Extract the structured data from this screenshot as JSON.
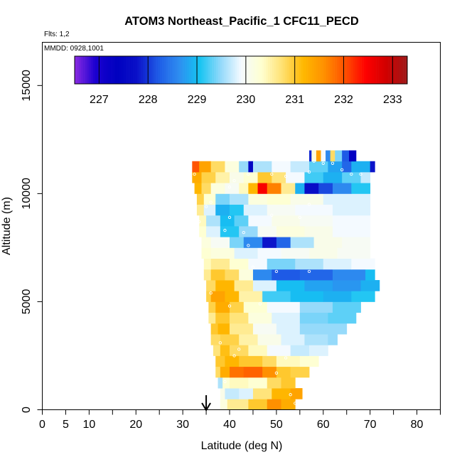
{
  "chart_data": {
    "type": "heatmap",
    "title": "ATOM3 Northeast_Pacific_1 CFC11_PECD",
    "subtitle_flights": "Flts: 1,2",
    "subtitle_dates": "MMDD: 0928,1001",
    "xlabel": "Latitude (deg N)",
    "ylabel": "Altitude (m)",
    "xlim": [
      0,
      85
    ],
    "ylim": [
      0,
      17000
    ],
    "x_ticks_labeled": [
      0,
      5,
      10,
      20,
      30,
      40,
      50,
      60,
      70,
      80
    ],
    "x_ticks_minor": [
      15,
      25,
      35,
      45,
      55,
      65,
      75,
      85
    ],
    "y_ticks": [
      0,
      5000,
      10000,
      15000
    ],
    "marker": {
      "latitude": 35,
      "symbol": "arrow"
    },
    "colorbar": {
      "range": [
        226.5,
        233.3
      ],
      "ticks": [
        227,
        228,
        229,
        230,
        231,
        232,
        233
      ],
      "colors": [
        "#8B2BE2",
        "#1A00D0",
        "#0000C0",
        "#0A10C8",
        "#1E5AE6",
        "#2E8CF0",
        "#14C4F2",
        "#90D8FA",
        "#F4FAFF",
        "#FFFFD0",
        "#FFE070",
        "#FFB800",
        "#FF9000",
        "#FF5000",
        "#FF0000",
        "#D00000",
        "#9E1A1A"
      ]
    },
    "bands": [
      {
        "alt": 0,
        "cells": [
          [
            38,
            39.5,
            230.2
          ],
          [
            39.5,
            44,
            230.6
          ],
          [
            44,
            48,
            231.0
          ],
          [
            48,
            51,
            231.6
          ],
          [
            51,
            54,
            231.3
          ]
        ]
      },
      {
        "alt": 500,
        "cells": [
          [
            38,
            39,
            230.1
          ],
          [
            39,
            42,
            229.7
          ],
          [
            42,
            45,
            229.8
          ],
          [
            45,
            49,
            230.7
          ],
          [
            49,
            53,
            231.2
          ],
          [
            53,
            55.5,
            231.4
          ]
        ]
      },
      {
        "alt": 1000,
        "cells": [
          [
            37.5,
            38.5,
            229.6
          ],
          [
            38.5,
            40,
            230.3
          ],
          [
            40,
            44,
            230.4
          ],
          [
            44,
            48,
            230.3
          ],
          [
            48,
            51,
            230.8
          ],
          [
            51,
            54,
            231.0
          ]
        ]
      },
      {
        "alt": 1500,
        "cells": [
          [
            37,
            38,
            230.8
          ],
          [
            38,
            40,
            231.3
          ],
          [
            40,
            43,
            231.8
          ],
          [
            43,
            47,
            231.9
          ],
          [
            47,
            50,
            231.6
          ],
          [
            50,
            53,
            231.0
          ],
          [
            53,
            57,
            230.9
          ]
        ]
      },
      {
        "alt": 2000,
        "cells": [
          [
            37,
            39,
            231.0
          ],
          [
            39,
            42,
            231.2
          ],
          [
            42,
            47,
            231.0
          ],
          [
            47,
            50,
            230.8
          ],
          [
            50,
            55,
            230.4
          ],
          [
            55,
            59,
            230.3
          ]
        ]
      },
      {
        "alt": 2500,
        "cells": [
          [
            36.5,
            38,
            230.7
          ],
          [
            38,
            40,
            231.1
          ],
          [
            40,
            44,
            230.8
          ],
          [
            44,
            48,
            230.4
          ],
          [
            48,
            53,
            229.9
          ],
          [
            53,
            57,
            229.7
          ],
          [
            57,
            61,
            229.8
          ]
        ]
      },
      {
        "alt": 3000,
        "cells": [
          [
            36,
            38,
            230.8
          ],
          [
            38,
            42,
            230.9
          ],
          [
            42,
            46,
            230.5
          ],
          [
            46,
            51,
            230.1
          ],
          [
            51,
            56,
            229.8
          ],
          [
            56,
            61,
            229.6
          ],
          [
            61,
            63,
            229.5
          ]
        ]
      },
      {
        "alt": 3500,
        "cells": [
          [
            36,
            37.5,
            231.0
          ],
          [
            37.5,
            40,
            231.2
          ],
          [
            40,
            45,
            230.6
          ],
          [
            45,
            50,
            230.0
          ],
          [
            50,
            55,
            229.8
          ],
          [
            55,
            60,
            229.5
          ],
          [
            60,
            65,
            229.5
          ]
        ]
      },
      {
        "alt": 4000,
        "cells": [
          [
            35.5,
            37,
            230.6
          ],
          [
            37,
            40,
            231.0
          ],
          [
            40,
            44,
            230.7
          ],
          [
            44,
            49,
            230.2
          ],
          [
            49,
            55,
            229.8
          ],
          [
            55,
            61,
            229.4
          ],
          [
            61,
            67,
            229.3
          ]
        ]
      },
      {
        "alt": 4500,
        "cells": [
          [
            35.5,
            37,
            230.9
          ],
          [
            37,
            40,
            231.3
          ],
          [
            40,
            43,
            230.9
          ],
          [
            43,
            48,
            230.3
          ],
          [
            48,
            55,
            229.9
          ],
          [
            55,
            62,
            229.5
          ],
          [
            62,
            68,
            229.3
          ]
        ]
      },
      {
        "alt": 5000,
        "cells": [
          [
            35,
            36,
            230.9
          ],
          [
            36,
            39,
            231.4
          ],
          [
            39,
            42,
            231.2
          ],
          [
            42,
            47,
            230.5
          ],
          [
            47,
            53,
            229.2
          ],
          [
            53,
            60,
            229.0
          ],
          [
            60,
            66,
            228.9
          ],
          [
            66,
            71,
            229.1
          ]
        ]
      },
      {
        "alt": 5500,
        "cells": [
          [
            35,
            37,
            230.8
          ],
          [
            37,
            41,
            231.2
          ],
          [
            41,
            45,
            230.6
          ],
          [
            45,
            50,
            229.8
          ],
          [
            50,
            56,
            229.0
          ],
          [
            56,
            62,
            228.8
          ],
          [
            62,
            68,
            228.7
          ],
          [
            68,
            72,
            228.9
          ]
        ]
      },
      {
        "alt": 6000,
        "cells": [
          [
            34.5,
            36,
            230.6
          ],
          [
            36,
            39,
            231.0
          ],
          [
            39,
            42,
            230.8
          ],
          [
            42,
            45,
            230.2
          ],
          [
            45,
            49,
            228.6
          ],
          [
            49,
            55,
            228.2
          ],
          [
            55,
            62,
            228.3
          ],
          [
            62,
            69,
            228.6
          ],
          [
            69,
            71,
            229.0
          ]
        ]
      },
      {
        "alt": 6500,
        "cells": [
          [
            34.5,
            36,
            230.4
          ],
          [
            36,
            40,
            230.6
          ],
          [
            40,
            44,
            230.3
          ],
          [
            44,
            48,
            229.9
          ],
          [
            48,
            54,
            229.4
          ],
          [
            54,
            60,
            229.6
          ],
          [
            60,
            66,
            229.8
          ],
          [
            66,
            71,
            229.9
          ]
        ]
      },
      {
        "alt": 7000,
        "cells": [
          [
            34,
            36,
            230.3
          ],
          [
            36,
            41,
            230.2
          ],
          [
            41,
            46,
            229.8
          ],
          [
            46,
            51,
            229.9
          ],
          [
            51,
            57,
            230.0
          ],
          [
            57,
            63,
            230.1
          ],
          [
            63,
            70,
            230.0
          ]
        ]
      },
      {
        "alt": 7500,
        "cells": [
          [
            34,
            36,
            230.2
          ],
          [
            36,
            40,
            230.0
          ],
          [
            40,
            43,
            229.4
          ],
          [
            43,
            47,
            228.6
          ],
          [
            47,
            50,
            227.8
          ],
          [
            50,
            53,
            228.3
          ],
          [
            53,
            58,
            229.6
          ],
          [
            58,
            64,
            230.1
          ],
          [
            64,
            70,
            230.0
          ]
        ]
      },
      {
        "alt": 8000,
        "cells": [
          [
            33.5,
            35,
            230.3
          ],
          [
            35,
            38,
            229.8
          ],
          [
            38,
            42,
            229.1
          ],
          [
            42,
            46,
            229.5
          ],
          [
            46,
            50,
            230.0
          ],
          [
            50,
            56,
            230.2
          ],
          [
            56,
            62,
            230.1
          ],
          [
            62,
            70,
            229.9
          ]
        ]
      },
      {
        "alt": 8500,
        "cells": [
          [
            33.5,
            35,
            230.4
          ],
          [
            35,
            38,
            229.6
          ],
          [
            38,
            41,
            229.0
          ],
          [
            41,
            44,
            229.3
          ],
          [
            44,
            49,
            229.9
          ],
          [
            49,
            55,
            230.1
          ],
          [
            55,
            62,
            230.0
          ],
          [
            62,
            70,
            229.9
          ]
        ]
      },
      {
        "alt": 9000,
        "cells": [
          [
            33,
            34.5,
            230.6
          ],
          [
            34.5,
            37,
            229.8
          ],
          [
            37,
            40,
            228.9
          ],
          [
            40,
            43,
            229.1
          ],
          [
            43,
            48,
            229.8
          ],
          [
            48,
            54,
            230.0
          ],
          [
            54,
            62,
            229.9
          ],
          [
            62,
            70,
            229.8
          ]
        ]
      },
      {
        "alt": 9500,
        "cells": [
          [
            33,
            34.5,
            230.9
          ],
          [
            34.5,
            37,
            230.3
          ],
          [
            37,
            40,
            229.4
          ],
          [
            40,
            44,
            229.6
          ],
          [
            44,
            48,
            230.2
          ],
          [
            48,
            53,
            230.3
          ],
          [
            53,
            60,
            230.1
          ],
          [
            60,
            70,
            229.8
          ]
        ]
      },
      {
        "alt": 10000,
        "cells": [
          [
            32.5,
            34,
            231.2
          ],
          [
            34,
            36,
            230.8
          ],
          [
            36,
            39,
            230.2
          ],
          [
            39,
            42,
            230.0
          ],
          [
            42,
            44,
            230.4
          ],
          [
            44,
            46,
            231.2
          ],
          [
            46,
            48,
            232.5
          ],
          [
            48,
            51,
            231.7
          ],
          [
            51,
            54,
            230.6
          ],
          [
            54,
            56,
            228.9
          ],
          [
            56,
            59,
            227.7
          ],
          [
            59,
            62,
            228.1
          ],
          [
            62,
            66,
            228.6
          ],
          [
            66,
            70,
            229.1
          ]
        ]
      },
      {
        "alt": 10500,
        "cells": [
          [
            32,
            34,
            231.3
          ],
          [
            34,
            37,
            230.9
          ],
          [
            37,
            40,
            230.5
          ],
          [
            40,
            43,
            230.1
          ],
          [
            43,
            46,
            230.3
          ],
          [
            46,
            49,
            231.0
          ],
          [
            49,
            52,
            230.7
          ],
          [
            52,
            56,
            229.9
          ],
          [
            56,
            60,
            229.2
          ],
          [
            60,
            64,
            228.9
          ],
          [
            64,
            68,
            229.3
          ],
          [
            68,
            70,
            229.7
          ]
        ]
      },
      {
        "alt": 11000,
        "cells": [
          [
            32,
            33.5,
            232.0
          ],
          [
            33.5,
            36,
            231.4
          ],
          [
            36,
            39,
            230.8
          ],
          [
            39,
            42,
            230.2
          ],
          [
            42,
            44,
            229.5
          ],
          [
            44,
            45,
            227.5
          ],
          [
            45,
            49,
            229.6
          ],
          [
            49,
            53,
            229.9
          ],
          [
            53,
            57,
            229.7
          ],
          [
            57,
            61,
            229.3
          ],
          [
            61,
            64,
            228.8
          ],
          [
            64,
            66,
            228.3
          ],
          [
            66,
            70,
            228.9
          ],
          [
            70,
            71,
            227.8
          ]
        ]
      },
      {
        "alt": 11500,
        "cells": [
          [
            57,
            57.5,
            227.9
          ],
          [
            57.5,
            58.5,
            230.2
          ],
          [
            58.5,
            59.5,
            231.4
          ],
          [
            59.5,
            60.5,
            229.9
          ],
          [
            60.5,
            61.5,
            228.6
          ],
          [
            61.5,
            62.5,
            230.8
          ],
          [
            62.5,
            64,
            229.4
          ],
          [
            64,
            65.5,
            228.2
          ],
          [
            65.5,
            67,
            227.3
          ]
        ]
      }
    ],
    "points": [
      [
        32.5,
        10900
      ],
      [
        33.5,
        8700
      ],
      [
        35,
        9400
      ],
      [
        36,
        9600
      ],
      [
        41,
        10600
      ],
      [
        44,
        10900
      ],
      [
        40,
        10300
      ],
      [
        40,
        8900
      ],
      [
        39,
        8300
      ],
      [
        43,
        8200
      ],
      [
        44,
        7600
      ],
      [
        49,
        10900
      ],
      [
        52,
        10800
      ],
      [
        49,
        9000
      ],
      [
        45,
        6600
      ],
      [
        50,
        6400
      ],
      [
        57,
        6400
      ],
      [
        57,
        11000
      ],
      [
        58,
        11500
      ],
      [
        60,
        11400
      ],
      [
        62,
        11400
      ],
      [
        64,
        11100
      ],
      [
        66,
        10900
      ],
      [
        68,
        10900
      ],
      [
        55,
        8900
      ],
      [
        57,
        9500
      ],
      [
        46.5,
        4900
      ],
      [
        40,
        4800
      ],
      [
        42,
        2800
      ],
      [
        41,
        2500
      ],
      [
        38,
        3100
      ],
      [
        39,
        1300
      ],
      [
        50,
        1700
      ],
      [
        52,
        2400
      ],
      [
        53,
        700
      ],
      [
        54,
        300
      ],
      [
        36,
        5400
      ],
      [
        35,
        3300
      ]
    ]
  }
}
